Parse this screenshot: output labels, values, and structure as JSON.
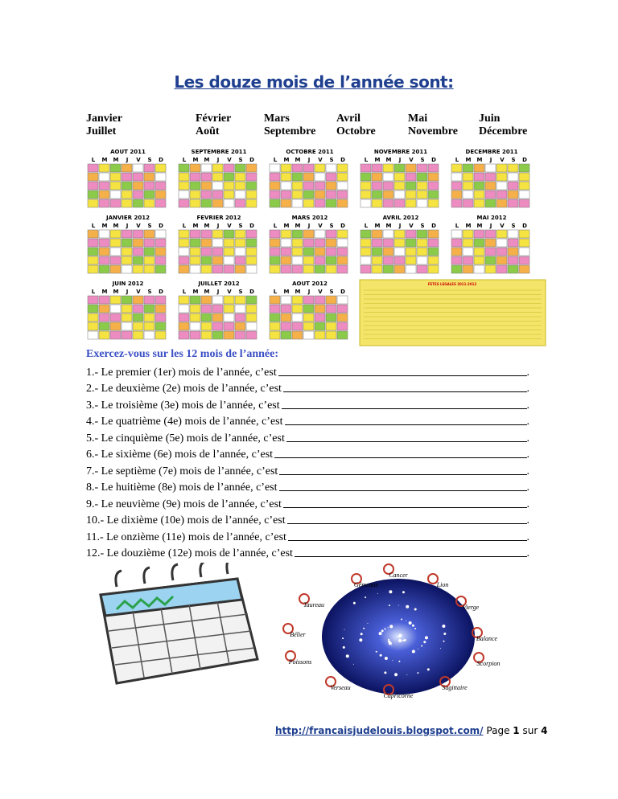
{
  "header": {
    "title": "Les douze mois de l’année sont:"
  },
  "months": [
    [
      "Janvier",
      "Février",
      "Mars",
      "Avril",
      "Mai",
      "Juin"
    ],
    [
      "Juillet",
      "Août",
      "Septembre",
      "Octobre",
      "Novembre",
      "Décembre"
    ]
  ],
  "calendar": {
    "day_letters": [
      "L",
      "M",
      "M",
      "J",
      "V",
      "S",
      "D"
    ],
    "months": [
      "AOUT 2011",
      "SEPTEMBRE 2011",
      "OCTOBRE 2011",
      "NOVEMBRE 2011",
      "DECEMBRE 2011",
      "JANVIER 2012",
      "FEVRIER 2012",
      "MARS 2012",
      "AVRIL 2012",
      "MAI 2012",
      "JUIN 2012",
      "JUILLET 2012",
      "AOUT 2012"
    ],
    "holidays_title": "FETES LEGALES 2011-2012"
  },
  "exercise": {
    "heading": "Exercez-vous sur les 12 mois de l’année:",
    "items": [
      {
        "prompt": "1.- Le premier (1er) mois de l’année, c’est",
        "end": "."
      },
      {
        "prompt": "2.- Le deuxième (2e) mois de l’année, c’est",
        "end": "."
      },
      {
        "prompt": "3.- Le troisième (3e) mois de l’année, c’est",
        "end": "."
      },
      {
        "prompt": "4.- Le quatrième (4e) mois de l’année, c’est",
        "end": "."
      },
      {
        "prompt": "5.- Le cinquième (5e) mois de l’année, c’est",
        "end": "."
      },
      {
        "prompt": "6.- Le sixième (6e) mois de l’année, c’est",
        "end": "."
      },
      {
        "prompt": "7.- Le septième (7e) mois de l’année, c’est",
        "end": "."
      },
      {
        "prompt": "8.- Le huitième (8e) mois de l’année, c’est",
        "end": "."
      },
      {
        "prompt": "9.- Le neuvième (9e) mois de l’année, c’est",
        "end": "."
      },
      {
        "prompt": "10.- Le dixième (10e) mois de l’année, c’est",
        "end": "."
      },
      {
        "prompt": "11.- Le onzième (11e) mois de l’année, c’est",
        "end": "."
      },
      {
        "prompt": "12.- Le douzième (12e) mois de l’année, c’est",
        "end": "."
      }
    ]
  },
  "zodiac": {
    "signs": [
      "Gémeaux",
      "Cancer",
      "Lion",
      "Taureau",
      "Vierge",
      "Bélier",
      "Balance",
      "Poissons",
      "Scorpion",
      "Verseau",
      "Capricorne",
      "Sagittaire"
    ]
  },
  "footer": {
    "url": "http://francaisjudelouis.blogspot.com/",
    "page_word": "Page",
    "page": "1",
    "of_word": "sur",
    "total": "4"
  }
}
